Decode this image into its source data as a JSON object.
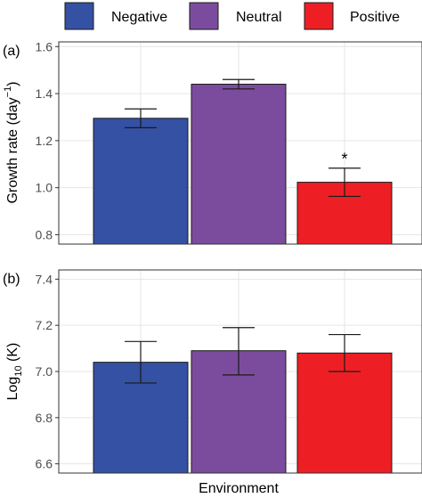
{
  "legend": {
    "items": [
      {
        "label": "Negative",
        "color": "#3451a3"
      },
      {
        "label": "Neutral",
        "color": "#7b4c9e"
      },
      {
        "label": "Positive",
        "color": "#ee1f24"
      }
    ]
  },
  "x_axis_title": "Environment",
  "chart_data": [
    {
      "type": "bar",
      "panel_label": "(a)",
      "categories": [
        "Negative",
        "Neutral",
        "Positive"
      ],
      "values": [
        1.295,
        1.44,
        1.023
      ],
      "error_low": [
        1.255,
        1.42,
        0.963
      ],
      "error_high": [
        1.335,
        1.46,
        1.083
      ],
      "colors": [
        "#3451a3",
        "#7b4c9e",
        "#ee1f24"
      ],
      "annotations": [
        "",
        "",
        "*"
      ],
      "ylabel": {
        "main": "Growth rate (day",
        "sup": "−1",
        "tail": ")"
      },
      "ylim": [
        0.76,
        1.62
      ],
      "yticks": [
        "0.8",
        "1.0",
        "1.2",
        "1.4",
        "1.6"
      ],
      "grid": true
    },
    {
      "type": "bar",
      "panel_label": "(b)",
      "categories": [
        "Negative",
        "Neutral",
        "Positive"
      ],
      "values": [
        7.04,
        7.09,
        7.08
      ],
      "error_low": [
        6.95,
        6.985,
        7.0
      ],
      "error_high": [
        7.13,
        7.19,
        7.16
      ],
      "colors": [
        "#3451a3",
        "#7b4c9e",
        "#ee1f24"
      ],
      "annotations": [
        "",
        "",
        ""
      ],
      "ylabel": {
        "main": "Log",
        "sub": "10",
        "tail": " (K)"
      },
      "ylim": [
        6.56,
        7.44
      ],
      "yticks": [
        "6.6",
        "6.8",
        "7.0",
        "7.2",
        "7.4"
      ],
      "grid": true
    }
  ]
}
